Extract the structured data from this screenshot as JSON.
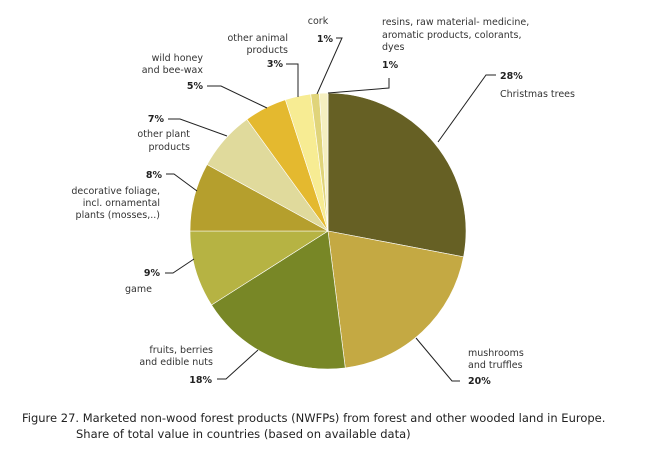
{
  "chart_data": {
    "type": "pie",
    "title": "",
    "caption": {
      "line1": "Figure 27. Marketed non-wood forest products (NWFPs) from forest and other wooded land in Europe.",
      "line2": "Share of total value in countries (based on available data)"
    },
    "slices": [
      {
        "label": [
          "Christmas trees"
        ],
        "value": 28,
        "pct": "28%",
        "color": "#666024"
      },
      {
        "label": [
          "mushrooms",
          "and truffles"
        ],
        "value": 20,
        "pct": "20%",
        "color": "#C4A943"
      },
      {
        "label": [
          "fruits, berries",
          "and edible nuts"
        ],
        "value": 18,
        "pct": "18%",
        "color": "#788726"
      },
      {
        "label": [
          "game"
        ],
        "value": 9,
        "pct": "9%",
        "color": "#B6B343"
      },
      {
        "label": [
          "decorative foliage,",
          "incl. ornamental",
          "plants (mosses,..)"
        ],
        "value": 8,
        "pct": "8%",
        "color": "#B59F2D"
      },
      {
        "label": [
          "other plant",
          "products"
        ],
        "value": 7,
        "pct": "7%",
        "color": "#E0DA9C"
      },
      {
        "label": [
          "wild honey",
          "and bee-wax"
        ],
        "value": 5,
        "pct": "5%",
        "color": "#E4B92F"
      },
      {
        "label": [
          "other animal",
          "products"
        ],
        "value": 3,
        "pct": "3%",
        "color": "#F7EC93"
      },
      {
        "label": [
          "cork"
        ],
        "value": 1,
        "pct": "1%",
        "color": "#E0D47A"
      },
      {
        "label": [
          "resins, raw material- medicine,",
          "aromatic products, colorants,",
          "dyes"
        ],
        "value": 1,
        "pct": "1%",
        "color": "#F5EFC0"
      }
    ],
    "start": "top",
    "direction": "clockwise",
    "legend": "none"
  }
}
